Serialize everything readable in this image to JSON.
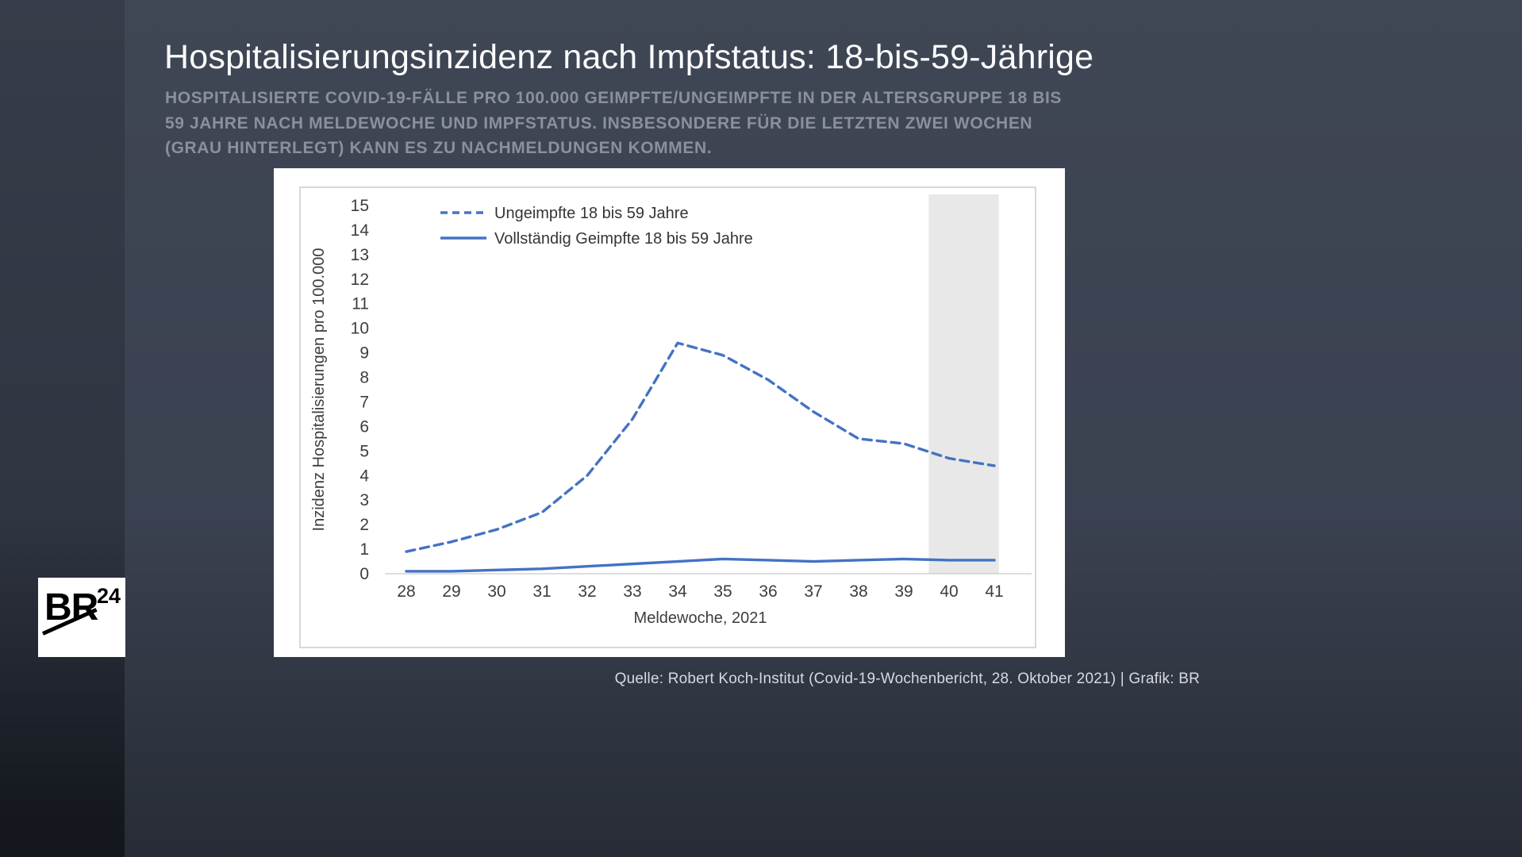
{
  "page": {
    "title": "Hospitalisierungsinzidenz nach Impfstatus: 18-bis-59-Jährige",
    "subtitle_lines": [
      "HOSPITALISIERTE COVID-19-FÄLLE PRO 100.000 GEIMPFTE/UNGEIMPFTE IN DER ALTERSGRUPPE 18 BIS",
      "59 JAHRE NACH MELDEWOCHE UND IMPFSTATUS. INSBESONDERE FÜR DIE LETZTEN ZWEI WOCHEN",
      "(GRAU HINTERLEGT) KANN ES ZU NACHMELDUNGEN KOMMEN."
    ],
    "source": "Quelle: Robert Koch-Institut (Covid-19-Wochenbericht, 28. Oktober 2021) | Grafik: BR",
    "logo": {
      "text": "BR",
      "superscript": "24"
    }
  },
  "colors": {
    "background": "#3a4150",
    "left_strip": "#2f3541",
    "title_text": "#fbfbfc",
    "subtitle_text": "#8a909c",
    "panel": "#ffffff",
    "line_blue": "#4472c4",
    "highlight_band": "#e8e8e8",
    "axis_text": "#3d3d3d"
  },
  "chart_data": {
    "type": "line",
    "x": [
      28,
      29,
      30,
      31,
      32,
      33,
      34,
      35,
      36,
      37,
      38,
      39,
      40,
      41
    ],
    "series": [
      {
        "name": "Ungeimpfte 18 bis 59 Jahre",
        "style": "dashed",
        "values": [
          0.9,
          1.3,
          1.8,
          2.5,
          4.0,
          6.3,
          9.4,
          8.9,
          7.9,
          6.6,
          5.5,
          5.3,
          4.7,
          4.4
        ]
      },
      {
        "name": "Vollständig Geimpfte 18 bis 59 Jahre",
        "style": "solid",
        "values": [
          0.1,
          0.1,
          0.15,
          0.2,
          0.3,
          0.4,
          0.5,
          0.6,
          0.55,
          0.5,
          0.55,
          0.6,
          0.55,
          0.55
        ]
      }
    ],
    "xlabel": "Meldewoche, 2021",
    "ylabel": "Inzidenz Hospitalisierungen pro 100.000",
    "ylim": [
      0,
      15
    ],
    "yticks": [
      0,
      1,
      2,
      3,
      4,
      5,
      6,
      7,
      8,
      9,
      10,
      11,
      12,
      13,
      14,
      15
    ],
    "highlight_band": {
      "x_start": 39.55,
      "x_end": 41.1
    },
    "grid": false,
    "legend_position": "top-left-inside",
    "line_color": "#4472c4",
    "band_color": "#e8e8e8"
  }
}
